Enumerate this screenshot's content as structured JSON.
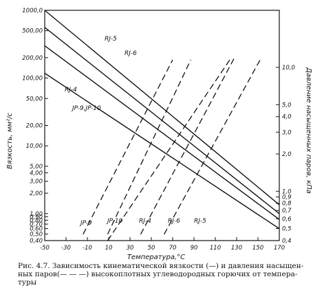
{
  "chart_data": {
    "type": "line",
    "xlabel": "Температура,°C",
    "ylabel_left": "Вязкость, мм²/с",
    "ylabel_right": "Давление насыщенных паров, кПа",
    "x_ticks": [
      -50,
      -30,
      -10,
      10,
      30,
      50,
      70,
      90,
      110,
      130,
      150,
      170
    ],
    "x_tick_labels": [
      "-50",
      "-30",
      "-10",
      "10",
      "30",
      "50",
      "70",
      "90",
      "110",
      "130",
      "150",
      "170"
    ],
    "xlim": [
      -50,
      170
    ],
    "y_left_scale": "log",
    "y_left_lim": [
      0.4,
      1000
    ],
    "y_left_tick_labels": [
      "1000,0",
      "500,00",
      "200,00",
      "100,00",
      "50,00",
      "20,00",
      "10,00",
      "5,00",
      "4,00",
      "3,00",
      "2,00",
      "1,00",
      "0,90",
      "0,80",
      "0,70",
      "0,60",
      "0,50",
      "0,40"
    ],
    "y_right_scale": "log",
    "y_right_tick_labels": [
      "10,0",
      "5,0",
      "4,0",
      "3,0",
      "2,0",
      "1,0",
      "0,9",
      "0,8",
      "0,7",
      "0,6",
      "0,5",
      "0,4"
    ],
    "viscosity_series": [
      {
        "name": "RJ-5",
        "x": [
          -50,
          170
        ],
        "y": [
          1000,
          1.35
        ]
      },
      {
        "name": "RJ-6",
        "x": [
          -50,
          170
        ],
        "y": [
          560,
          1.0
        ]
      },
      {
        "name": "RJ-4",
        "x": [
          -50,
          170
        ],
        "y": [
          300,
          0.82
        ]
      },
      {
        "name": "JP-9, JP-10",
        "x": [
          -50,
          170
        ],
        "y": [
          118,
          0.6
        ]
      }
    ],
    "vapor_pressure_series": [
      {
        "name": "JP-9",
        "x": [
          -14,
          70
        ],
        "y": [
          0.45,
          11.5
        ]
      },
      {
        "name": "JP-10",
        "x": [
          9,
          87
        ],
        "y": [
          0.45,
          11.5
        ]
      },
      {
        "name": "RJ-4",
        "x": [
          9,
          125
        ],
        "y": [
          0.4,
          12.0
        ]
      },
      {
        "name": "RJ-6",
        "x": [
          40,
          128
        ],
        "y": [
          0.45,
          12.0
        ]
      },
      {
        "name": "RJ-5",
        "x": [
          62,
          152
        ],
        "y": [
          0.45,
          11.5
        ]
      }
    ],
    "curve_labels": {
      "viscosity": [
        "RJ-5",
        "RJ-6",
        "RJ-4",
        "JP-9,JP-10"
      ],
      "vapor": [
        "JP-9",
        "JP-10",
        "RJ-4",
        "RJ-6",
        "RJ-5"
      ]
    },
    "grid": false,
    "legend": "none"
  },
  "caption": {
    "line1": "Рис. 4.7. Зависимость кинематической вязкости (—) и давления насыщен-",
    "line2": "ных паров(— — —) высокоплотных углеводородных горючих от темпера-",
    "line3": "туры"
  },
  "colors": {
    "ink": "#111111",
    "background": "#ffffff"
  }
}
